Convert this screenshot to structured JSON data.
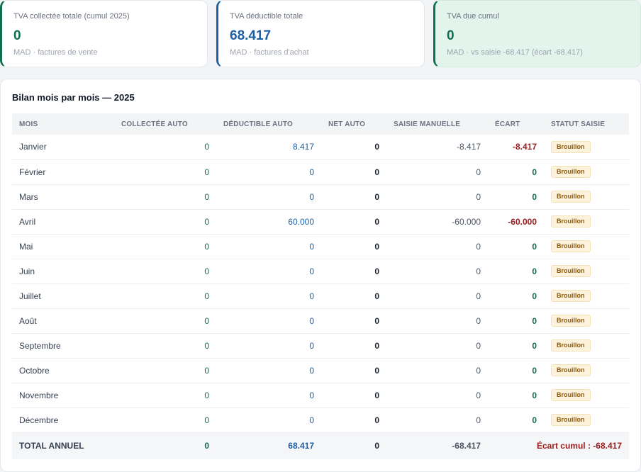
{
  "cards": {
    "collected": {
      "label": "TVA collectée totale (cumul 2025)",
      "value": "0",
      "sub": "MAD · factures de vente"
    },
    "deductible": {
      "label": "TVA déductible totale",
      "value": "68.417",
      "sub": "MAD · factures d'achat"
    },
    "due": {
      "label": "TVA due cumul",
      "value": "0",
      "sub": "MAD · vs saisie -68.417 (écart -68.417)"
    }
  },
  "panel": {
    "title": "Bilan mois par mois — 2025",
    "columns": [
      "MOIS",
      "COLLECTÉE AUTO",
      "DÉDUCTIBLE AUTO",
      "NET AUTO",
      "SAISIE MANUELLE",
      "ÉCART",
      "STATUT SAISIE"
    ],
    "rows": [
      {
        "month": "Janvier",
        "collected": "0",
        "deductible": "8.417",
        "net": "0",
        "manual": "-8.417",
        "ecart": "-8.417",
        "status": "Brouillon"
      },
      {
        "month": "Février",
        "collected": "0",
        "deductible": "0",
        "net": "0",
        "manual": "0",
        "ecart": "0",
        "status": "Brouillon"
      },
      {
        "month": "Mars",
        "collected": "0",
        "deductible": "0",
        "net": "0",
        "manual": "0",
        "ecart": "0",
        "status": "Brouillon"
      },
      {
        "month": "Avril",
        "collected": "0",
        "deductible": "60.000",
        "net": "0",
        "manual": "-60.000",
        "ecart": "-60.000",
        "status": "Brouillon"
      },
      {
        "month": "Mai",
        "collected": "0",
        "deductible": "0",
        "net": "0",
        "manual": "0",
        "ecart": "0",
        "status": "Brouillon"
      },
      {
        "month": "Juin",
        "collected": "0",
        "deductible": "0",
        "net": "0",
        "manual": "0",
        "ecart": "0",
        "status": "Brouillon"
      },
      {
        "month": "Juillet",
        "collected": "0",
        "deductible": "0",
        "net": "0",
        "manual": "0",
        "ecart": "0",
        "status": "Brouillon"
      },
      {
        "month": "Août",
        "collected": "0",
        "deductible": "0",
        "net": "0",
        "manual": "0",
        "ecart": "0",
        "status": "Brouillon"
      },
      {
        "month": "Septembre",
        "collected": "0",
        "deductible": "0",
        "net": "0",
        "manual": "0",
        "ecart": "0",
        "status": "Brouillon"
      },
      {
        "month": "Octobre",
        "collected": "0",
        "deductible": "0",
        "net": "0",
        "manual": "0",
        "ecart": "0",
        "status": "Brouillon"
      },
      {
        "month": "Novembre",
        "collected": "0",
        "deductible": "0",
        "net": "0",
        "manual": "0",
        "ecart": "0",
        "status": "Brouillon"
      },
      {
        "month": "Décembre",
        "collected": "0",
        "deductible": "0",
        "net": "0",
        "manual": "0",
        "ecart": "0",
        "status": "Brouillon"
      }
    ],
    "total": {
      "label": "TOTAL ANNUEL",
      "collected": "0",
      "deductible": "68.417",
      "net": "0",
      "manual": "-68.417",
      "ecart_cumul": "Écart cumul : -68.417"
    }
  },
  "colors": {
    "green": "#0f6e52",
    "blue": "#1d5fa6",
    "red": "#9b1c1c",
    "badge_bg": "#fdf3dc",
    "badge_text": "#8a5a12",
    "due_card_bg": "#e2f4ec"
  }
}
